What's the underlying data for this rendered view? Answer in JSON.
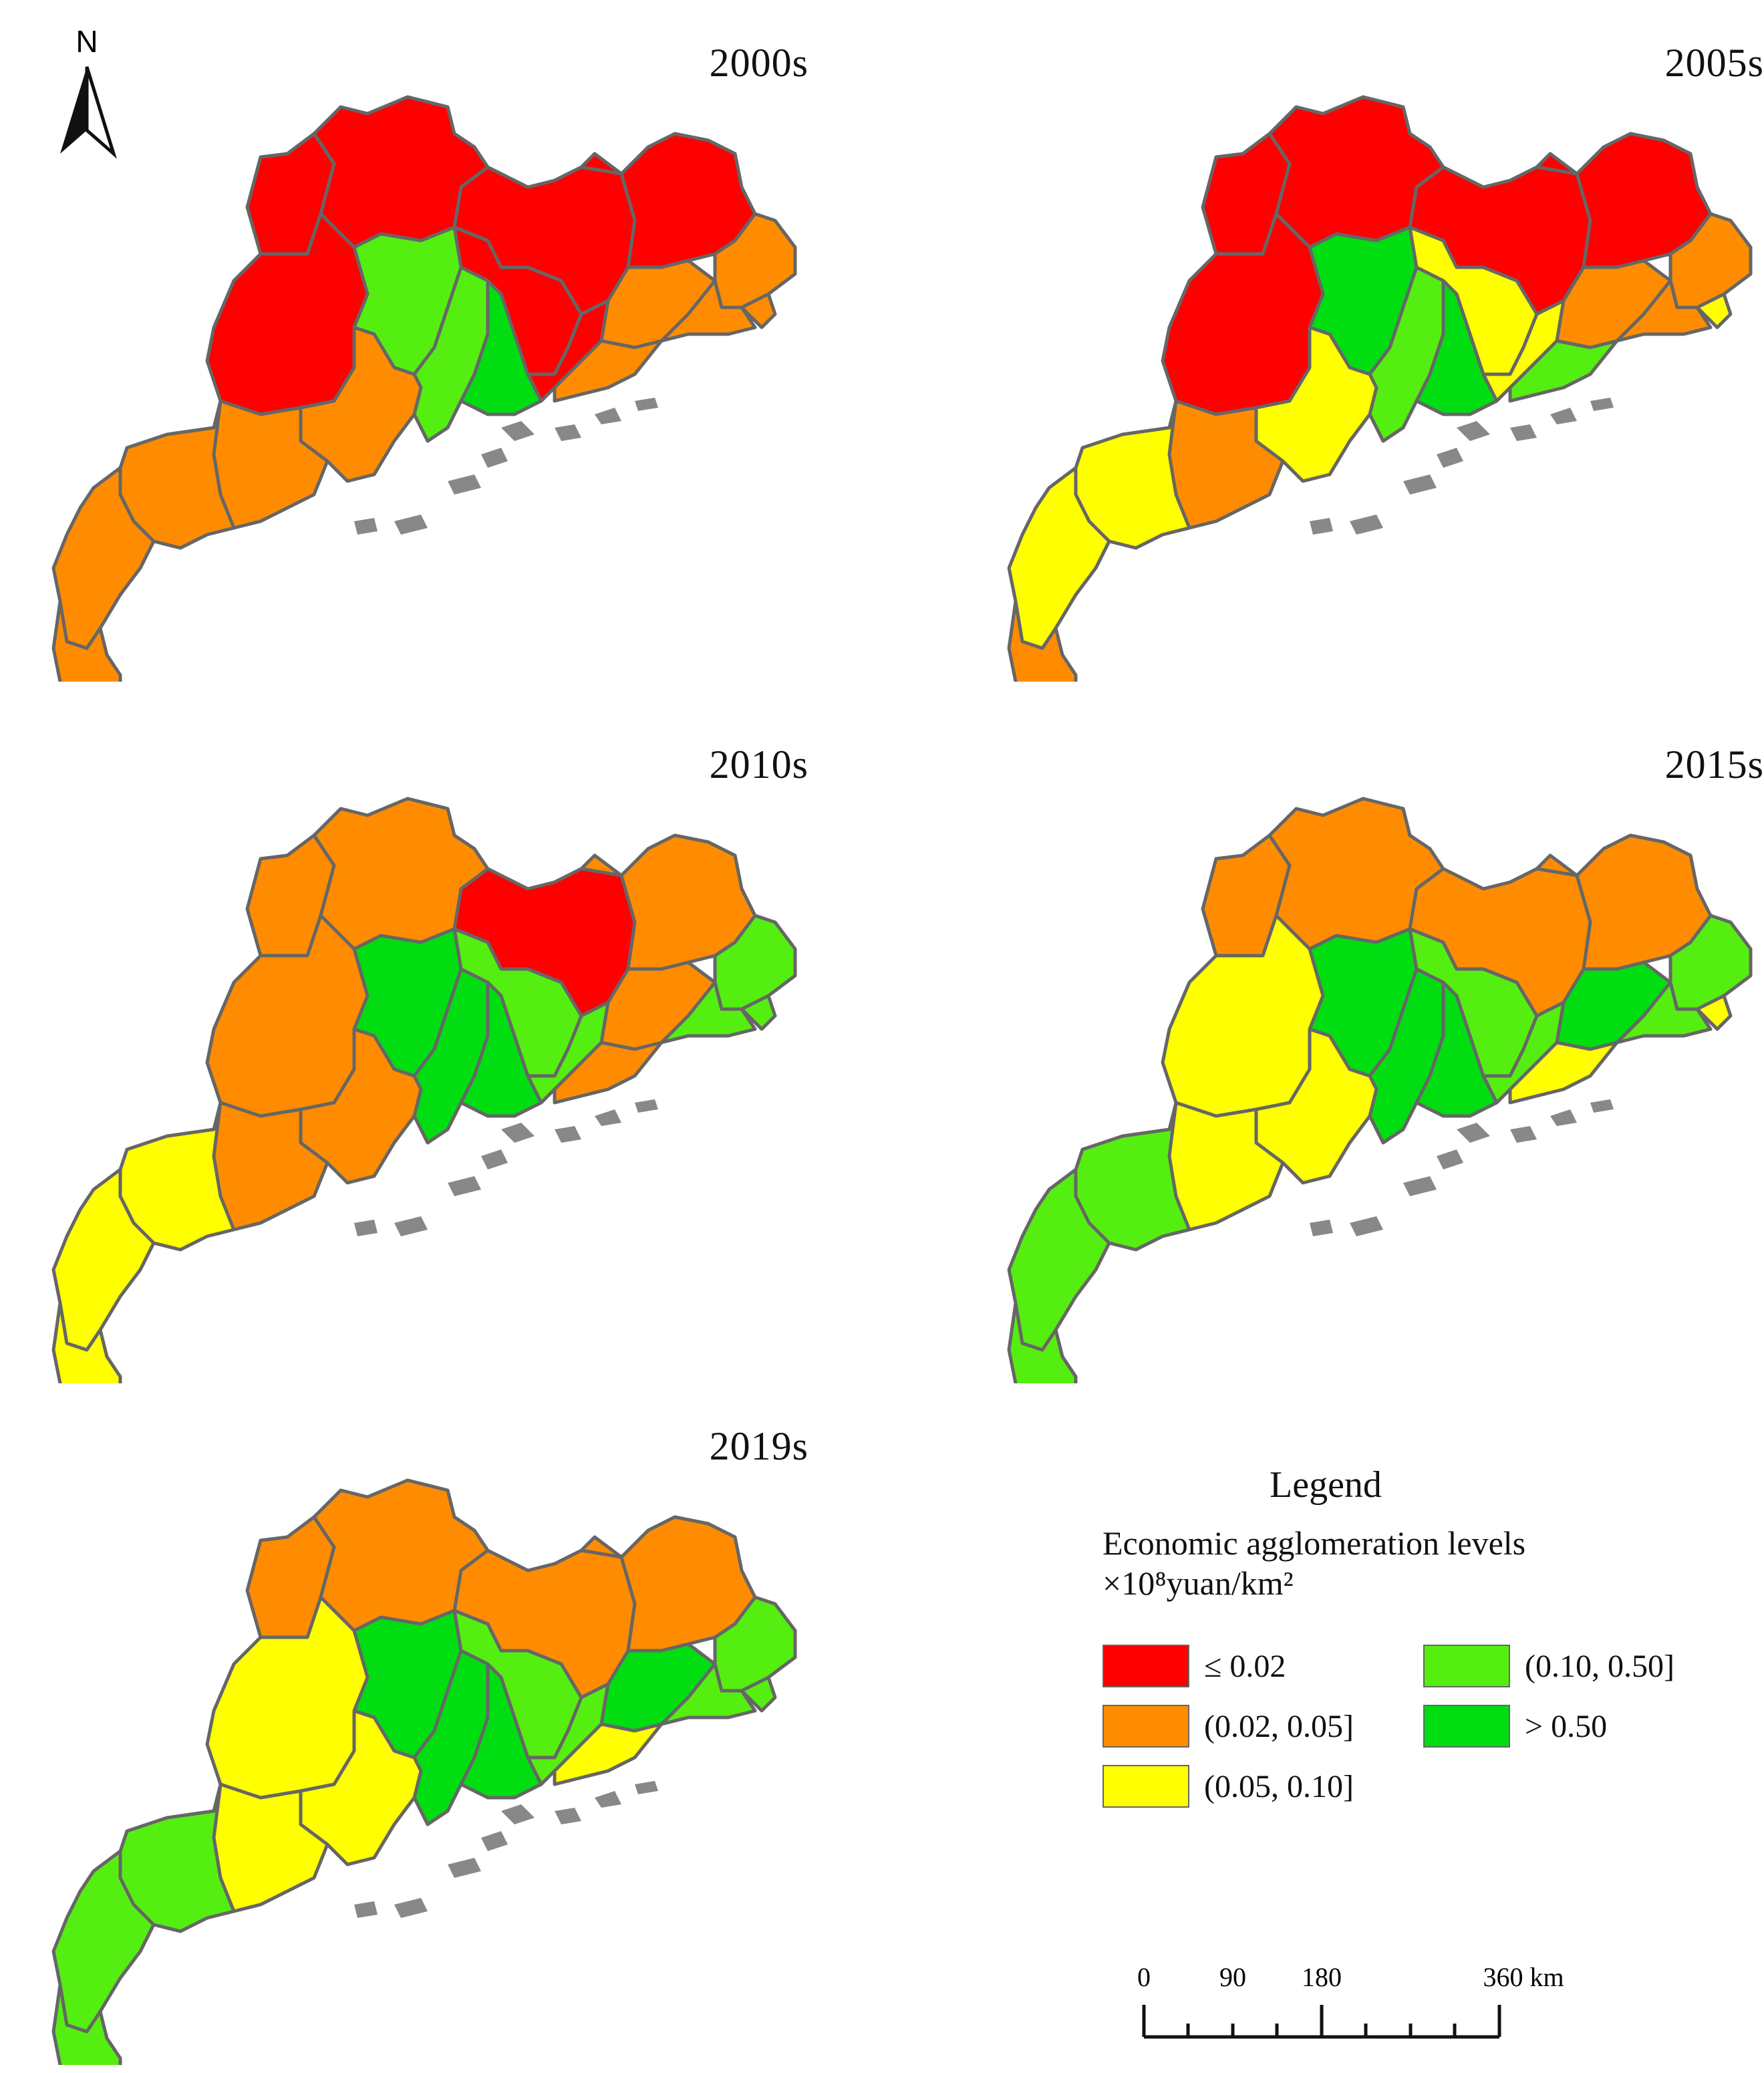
{
  "compass": {
    "label": "N"
  },
  "panels": [
    {
      "title": "2000s",
      "regions": [
        "red",
        "red",
        "red",
        "red",
        "red",
        "orange",
        "orange",
        "red",
        "light-green",
        "light-green",
        "green",
        "red",
        "red",
        "orange",
        "orange",
        "orange",
        "orange",
        "orange",
        "orange",
        "orange",
        "orange"
      ]
    },
    {
      "title": "2005s",
      "regions": [
        "red",
        "red",
        "red",
        "red",
        "red",
        "orange",
        "yellow",
        "red",
        "green",
        "light-green",
        "green",
        "yellow",
        "yellow",
        "orange",
        "light-green",
        "orange",
        "yellow",
        "orange",
        "yellow",
        "yellow",
        "orange"
      ]
    },
    {
      "title": "2010s",
      "regions": [
        "orange",
        "orange",
        "red",
        "orange",
        "orange",
        "light-green",
        "light-green",
        "orange",
        "green",
        "green",
        "green",
        "light-green",
        "light-green",
        "orange",
        "orange",
        "light-green",
        "orange",
        "orange",
        "yellow",
        "yellow",
        "yellow"
      ]
    },
    {
      "title": "2015s",
      "regions": [
        "orange",
        "orange",
        "orange",
        "orange",
        "orange",
        "light-green",
        "yellow",
        "yellow",
        "green",
        "green",
        "green",
        "light-green",
        "light-green",
        "green",
        "yellow",
        "light-green",
        "yellow",
        "yellow",
        "light-green",
        "light-green",
        "light-green"
      ]
    },
    {
      "title": "2019s",
      "regions": [
        "orange",
        "orange",
        "orange",
        "orange",
        "orange",
        "light-green",
        "light-green",
        "yellow",
        "green",
        "green",
        "green",
        "light-green",
        "light-green",
        "green",
        "yellow",
        "light-green",
        "yellow",
        "yellow",
        "light-green",
        "light-green",
        "light-green"
      ]
    }
  ],
  "palette": {
    "red": "#ff0000",
    "orange": "#ff8c00",
    "yellow": "#ffff00",
    "light-green": "#55ee11",
    "green": "#00dd11"
  },
  "legend": {
    "title": "Legend",
    "subtitle": "Economic agglomeration levels",
    "unit": "×10⁸yuan/km²",
    "items": [
      {
        "label": "≤ 0.02",
        "color": "#ff0000"
      },
      {
        "label": "(0.02, 0.05]",
        "color": "#ff8c00"
      },
      {
        "label": "(0.05, 0.10]",
        "color": "#ffff00"
      },
      {
        "label": "(0.10, 0.50]",
        "color": "#55ee11"
      },
      {
        "label": "> 0.50",
        "color": "#00dd11"
      }
    ]
  },
  "scale": {
    "ticks": [
      "0",
      "90",
      "180",
      "360 km"
    ]
  }
}
